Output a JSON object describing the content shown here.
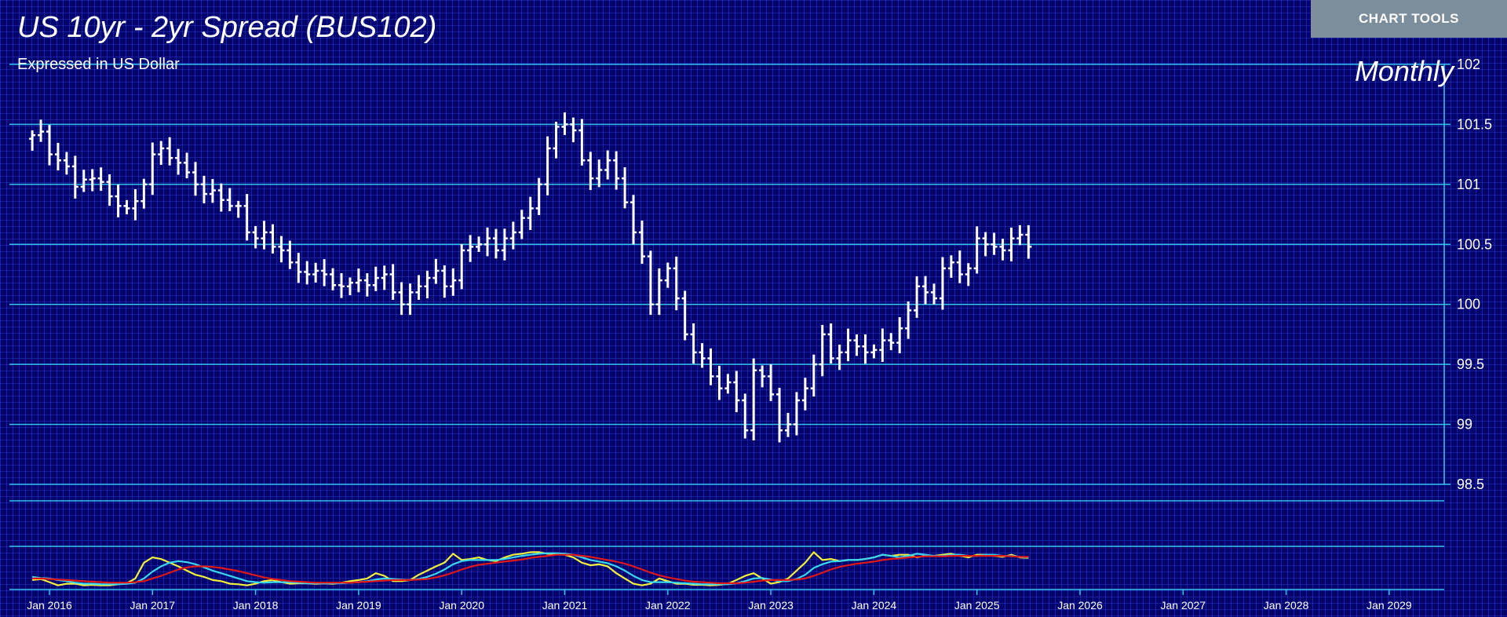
{
  "header": {
    "title": "US 10yr - 2yr Spread (BUS102)",
    "subtitle": "Expressed in US Dollar",
    "period": "Monthly",
    "tools_label": "CHART TOOLS"
  },
  "colors": {
    "background": "#02026e",
    "grid_line": "#33c4ec",
    "candle": "#ffffff",
    "indicator_yellow": "#f2f23a",
    "indicator_cyan": "#3ad8f0",
    "indicator_red": "#e01818"
  },
  "chart_data": {
    "type": "ohlc",
    "title": "US 10yr - 2yr Spread (BUS102)",
    "subtitle": "Expressed in US Dollar",
    "period": "Monthly",
    "ylim": [
      98.5,
      102
    ],
    "y_ticks": [
      98.5,
      99,
      99.5,
      100,
      100.5,
      101,
      101.5,
      102
    ],
    "x_ticks": [
      "Jan 2016",
      "Jan 2017",
      "Jan 2018",
      "Jan 2019",
      "Jan 2020",
      "Jan 2021",
      "Jan 2022",
      "Jan 2023",
      "Jan 2024",
      "Jan 2025",
      "Jan 2026",
      "Jan 2027",
      "Jan 2028",
      "Jan 2029"
    ],
    "x_start": "2015-11",
    "closes": [
      101.41,
      101.44,
      101.25,
      101.2,
      101.15,
      100.98,
      101.04,
      101.05,
      101.02,
      100.9,
      100.82,
      100.8,
      100.86,
      101.0,
      101.25,
      101.3,
      101.22,
      101.18,
      101.1,
      101.0,
      100.92,
      100.95,
      100.87,
      100.82,
      100.82,
      100.6,
      100.55,
      100.6,
      100.48,
      100.45,
      100.35,
      100.27,
      100.25,
      100.28,
      100.25,
      100.16,
      100.15,
      100.18,
      100.2,
      100.16,
      100.22,
      100.25,
      100.1,
      100.0,
      100.1,
      100.15,
      100.22,
      100.28,
      100.15,
      100.2,
      100.45,
      100.48,
      100.5,
      100.55,
      100.45,
      100.55,
      100.6,
      100.72,
      100.8,
      101.0,
      101.3,
      101.48,
      101.5,
      101.45,
      101.2,
      101.05,
      101.12,
      101.2,
      101.05,
      100.85,
      100.6,
      100.4,
      100.0,
      100.2,
      100.3,
      100.05,
      99.75,
      99.6,
      99.55,
      99.4,
      99.3,
      99.35,
      99.2,
      98.95,
      99.45,
      99.4,
      99.25,
      98.95,
      99.0,
      99.2,
      99.3,
      99.5,
      99.75,
      99.55,
      99.6,
      99.7,
      99.65,
      99.6,
      99.62,
      99.7,
      99.68,
      99.8,
      99.95,
      100.15,
      100.1,
      100.05,
      100.3,
      100.35,
      100.25,
      100.3,
      100.55,
      100.5,
      100.48,
      100.45,
      100.55,
      100.58,
      100.48
    ],
    "indicator_series": [
      {
        "color": "#f2f23a",
        "values": [
          0.12,
          0.14,
          0.08,
          0.02,
          0.05,
          0.05,
          0.02,
          0.03,
          0.02,
          0.02,
          0.04,
          0.06,
          0.15,
          0.45,
          0.55,
          0.52,
          0.45,
          0.38,
          0.3,
          0.22,
          0.18,
          0.12,
          0.1,
          0.05,
          0.04,
          0.02,
          0.05,
          0.1,
          0.12,
          0.08,
          0.05,
          0.06,
          0.06,
          0.05,
          0.06,
          0.05,
          0.07,
          0.1,
          0.12,
          0.15,
          0.25,
          0.2,
          0.1,
          0.1,
          0.12,
          0.22,
          0.3,
          0.38,
          0.45,
          0.62,
          0.5,
          0.52,
          0.55,
          0.5,
          0.48,
          0.55,
          0.6,
          0.62,
          0.65,
          0.65,
          0.62,
          0.62,
          0.6,
          0.55,
          0.45,
          0.4,
          0.42,
          0.38,
          0.25,
          0.15,
          0.05,
          0.02,
          0.05,
          0.15,
          0.1,
          0.05,
          0.05,
          0.03,
          0.03,
          0.02,
          0.03,
          0.05,
          0.12,
          0.2,
          0.25,
          0.15,
          0.05,
          0.08,
          0.15,
          0.3,
          0.45,
          0.65,
          0.5,
          0.52,
          0.48,
          0.5,
          0.5,
          0.52,
          0.55,
          0.6,
          0.58,
          0.6,
          0.6,
          0.55,
          0.58,
          0.58,
          0.6,
          0.62,
          0.58,
          0.55,
          0.6,
          0.6,
          0.58,
          0.56,
          0.6,
          0.55,
          0.54
        ]
      },
      {
        "color": "#3ad8f0",
        "values": [
          0.18,
          0.16,
          0.15,
          0.12,
          0.1,
          0.07,
          0.05,
          0.05,
          0.04,
          0.04,
          0.04,
          0.05,
          0.07,
          0.15,
          0.28,
          0.38,
          0.45,
          0.48,
          0.46,
          0.42,
          0.36,
          0.3,
          0.25,
          0.2,
          0.15,
          0.1,
          0.08,
          0.07,
          0.08,
          0.08,
          0.08,
          0.07,
          0.06,
          0.06,
          0.06,
          0.06,
          0.06,
          0.07,
          0.08,
          0.1,
          0.13,
          0.15,
          0.14,
          0.13,
          0.12,
          0.14,
          0.18,
          0.24,
          0.32,
          0.42,
          0.48,
          0.5,
          0.5,
          0.5,
          0.5,
          0.52,
          0.55,
          0.58,
          0.6,
          0.62,
          0.63,
          0.63,
          0.62,
          0.6,
          0.55,
          0.5,
          0.47,
          0.44,
          0.38,
          0.3,
          0.2,
          0.12,
          0.08,
          0.08,
          0.08,
          0.07,
          0.06,
          0.05,
          0.04,
          0.04,
          0.04,
          0.04,
          0.06,
          0.1,
          0.15,
          0.16,
          0.13,
          0.1,
          0.1,
          0.14,
          0.22,
          0.35,
          0.42,
          0.47,
          0.48,
          0.5,
          0.5,
          0.52,
          0.55,
          0.6,
          0.58,
          0.55,
          0.58,
          0.62,
          0.6,
          0.58,
          0.58,
          0.6,
          0.6,
          0.58,
          0.58,
          0.6,
          0.6,
          0.58,
          0.58,
          0.56,
          0.55
        ]
      },
      {
        "color": "#e01818",
        "values": [
          0.15,
          0.15,
          0.14,
          0.13,
          0.12,
          0.11,
          0.1,
          0.09,
          0.08,
          0.07,
          0.07,
          0.07,
          0.08,
          0.1,
          0.15,
          0.2,
          0.26,
          0.32,
          0.36,
          0.38,
          0.38,
          0.37,
          0.35,
          0.32,
          0.29,
          0.25,
          0.21,
          0.17,
          0.14,
          0.12,
          0.1,
          0.09,
          0.08,
          0.07,
          0.07,
          0.07,
          0.07,
          0.07,
          0.08,
          0.09,
          0.1,
          0.11,
          0.12,
          0.12,
          0.12,
          0.13,
          0.14,
          0.17,
          0.21,
          0.26,
          0.32,
          0.37,
          0.41,
          0.43,
          0.45,
          0.47,
          0.49,
          0.51,
          0.54,
          0.56,
          0.58,
          0.6,
          0.6,
          0.6,
          0.58,
          0.56,
          0.53,
          0.5,
          0.47,
          0.43,
          0.38,
          0.32,
          0.26,
          0.21,
          0.17,
          0.14,
          0.11,
          0.09,
          0.08,
          0.07,
          0.06,
          0.06,
          0.06,
          0.07,
          0.09,
          0.11,
          0.12,
          0.12,
          0.12,
          0.13,
          0.15,
          0.2,
          0.26,
          0.32,
          0.37,
          0.4,
          0.43,
          0.45,
          0.47,
          0.5,
          0.52,
          0.53,
          0.55,
          0.56,
          0.57,
          0.57,
          0.57,
          0.58,
          0.58,
          0.58,
          0.58,
          0.58,
          0.58,
          0.58,
          0.57,
          0.56,
          0.56
        ]
      }
    ]
  }
}
